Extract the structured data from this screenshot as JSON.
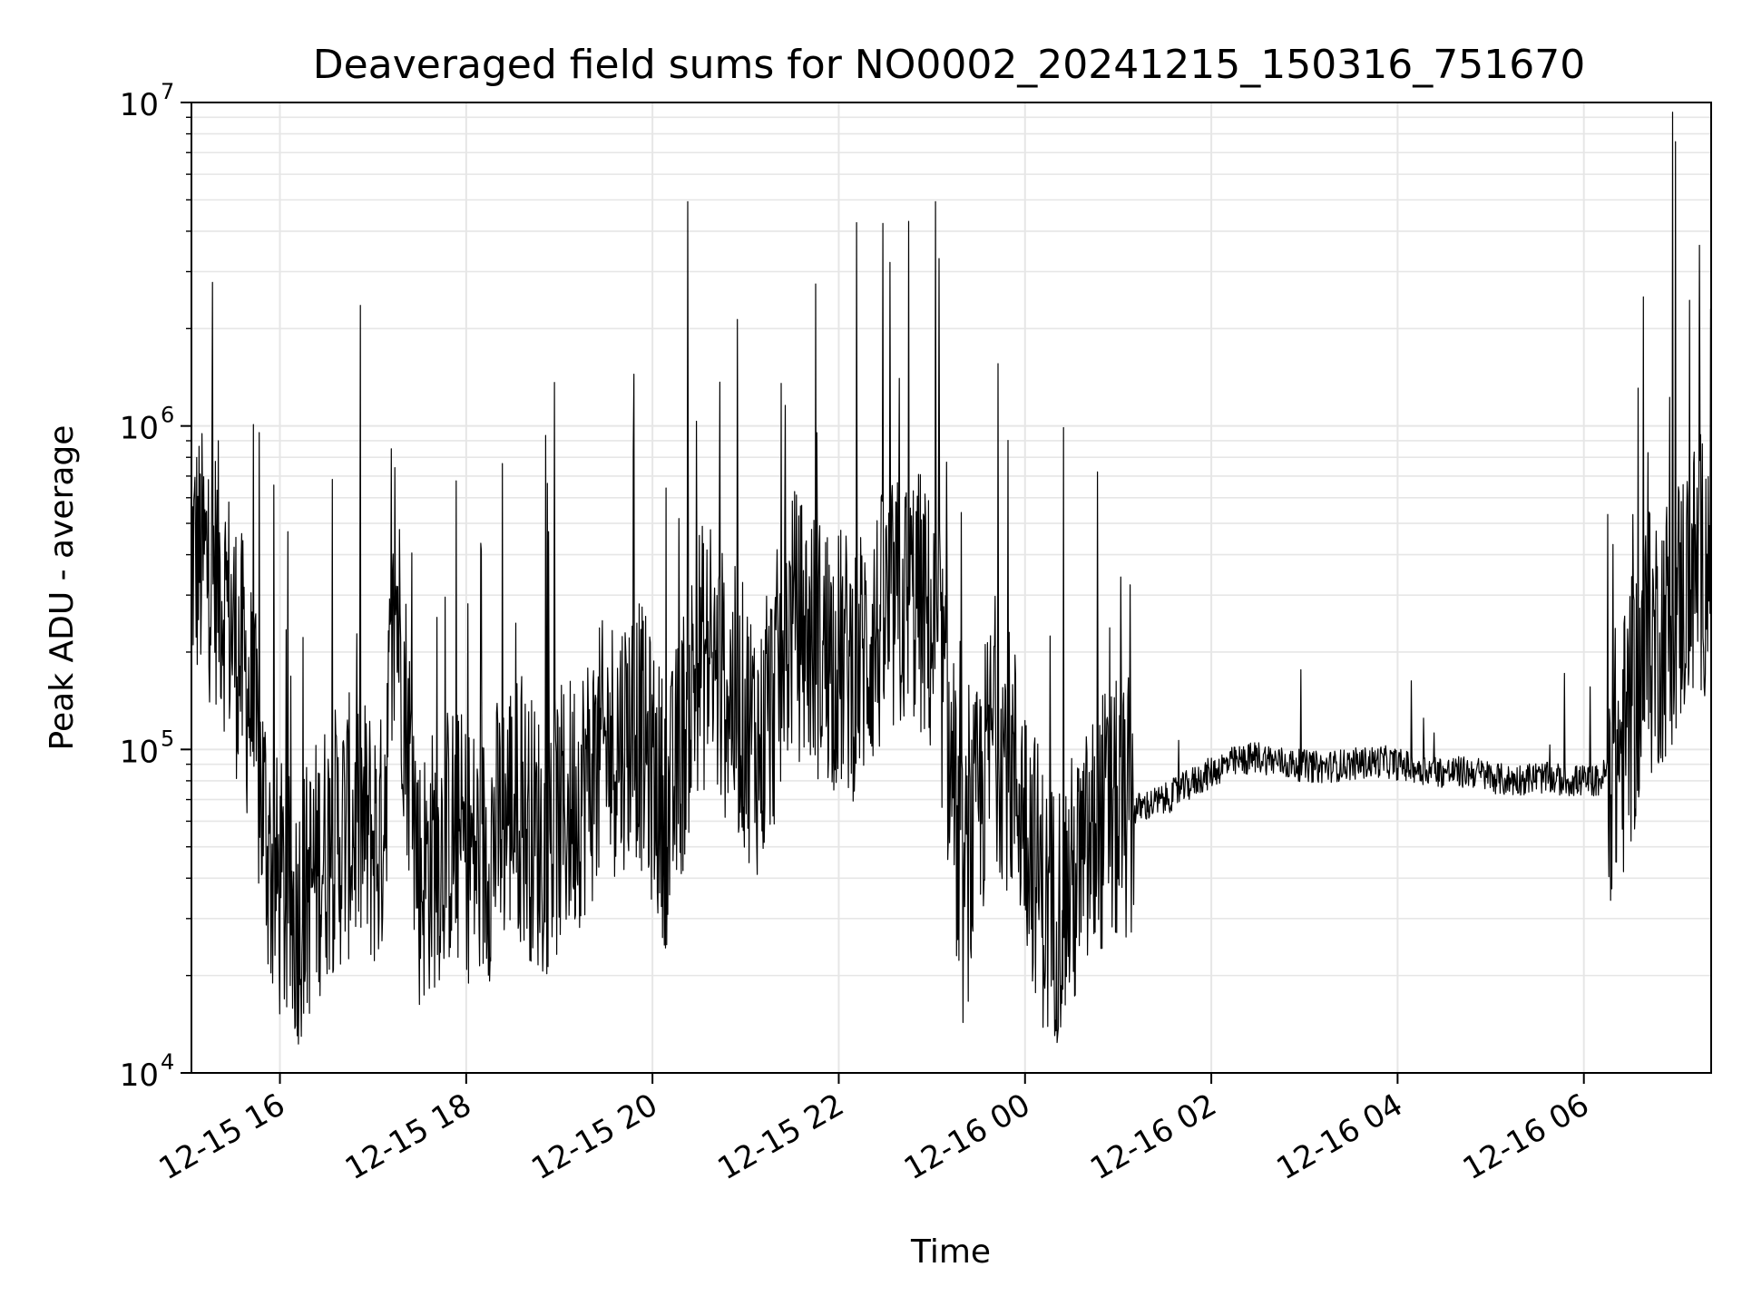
{
  "chart_data": {
    "type": "line",
    "title": "Deaveraged field sums for NO0002_20241215_150316_751670",
    "xlabel": "Time",
    "ylabel": "Peak ADU - average",
    "yscale": "log",
    "ylim": [
      10000,
      10000000
    ],
    "xlim": [
      "2024-12-15 15:03",
      "2024-12-16 07:22"
    ],
    "grid": true,
    "line_color": "#000000",
    "grid_color": "#e6e6e6",
    "x_ticks": [
      "12-15 16",
      "12-15 18",
      "12-15 20",
      "12-15 22",
      "12-16 00",
      "12-16 02",
      "12-16 04",
      "12-16 06"
    ],
    "x_tick_times": [
      "2024-12-15 16:00",
      "2024-12-15 18:00",
      "2024-12-15 20:00",
      "2024-12-15 22:00",
      "2024-12-16 00:00",
      "2024-12-16 02:00",
      "2024-12-16 04:00",
      "2024-12-16 06:00"
    ],
    "y_ticks": [
      {
        "base": "10",
        "exp": "4"
      },
      {
        "base": "10",
        "exp": "5"
      },
      {
        "base": "10",
        "exp": "6"
      },
      {
        "base": "10",
        "exp": "7"
      }
    ],
    "series": [
      {
        "x": [
          "2024-12-15 15:03",
          "2024-12-15 15:20",
          "2024-12-15 15:40",
          "2024-12-15 15:55",
          "2024-12-15 16:10",
          "2024-12-15 16:30",
          "2024-12-15 16:50",
          "2024-12-15 17:05",
          "2024-12-15 17:15",
          "2024-12-15 17:30",
          "2024-12-15 17:50",
          "2024-12-15 18:10",
          "2024-12-15 18:30",
          "2024-12-15 18:50",
          "2024-12-15 19:10",
          "2024-12-15 19:30",
          "2024-12-15 19:50",
          "2024-12-15 20:10",
          "2024-12-15 20:30",
          "2024-12-15 20:50",
          "2024-12-15 21:10",
          "2024-12-15 21:30",
          "2024-12-15 21:50",
          "2024-12-15 22:10",
          "2024-12-15 22:30",
          "2024-12-15 22:50",
          "2024-12-15 23:05",
          "2024-12-15 23:20",
          "2024-12-15 23:40",
          "2024-12-15 23:55",
          "2024-12-16 00:15",
          "2024-12-16 00:35",
          "2024-12-16 00:50",
          "2024-12-16 01:10",
          "2024-12-16 01:30",
          "2024-12-16 01:50",
          "2024-12-16 02:10",
          "2024-12-16 02:30",
          "2024-12-16 02:50",
          "2024-12-16 03:10",
          "2024-12-16 03:30",
          "2024-12-16 03:50",
          "2024-12-16 04:10",
          "2024-12-16 04:30",
          "2024-12-16 04:50",
          "2024-12-16 05:10",
          "2024-12-16 05:30",
          "2024-12-16 05:50",
          "2024-12-16 06:10",
          "2024-12-16 06:25",
          "2024-12-16 06:40",
          "2024-12-16 06:55",
          "2024-12-16 07:10",
          "2024-12-16 07:22"
        ],
        "y": [
          400000,
          350000,
          150000,
          40000,
          30000,
          50000,
          60000,
          50000,
          300000,
          40000,
          55000,
          45000,
          70000,
          50000,
          70000,
          100000,
          120000,
          60000,
          200000,
          150000,
          100000,
          250000,
          200000,
          180000,
          250000,
          300000,
          200000,
          35000,
          120000,
          80000,
          30000,
          40000,
          60000,
          65000,
          70000,
          80000,
          90000,
          95000,
          90000,
          88000,
          90000,
          92000,
          88000,
          85000,
          85000,
          80000,
          82000,
          80000,
          80000,
          100000,
          200000,
          250000,
          350000,
          400000
        ]
      }
    ]
  }
}
